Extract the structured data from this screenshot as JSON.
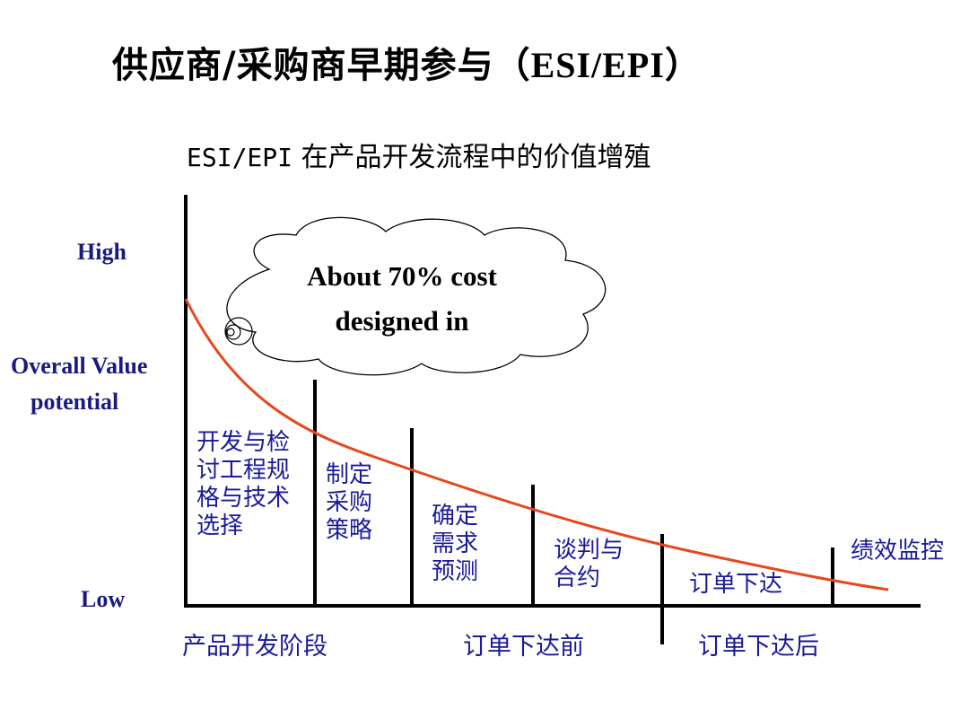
{
  "title_cn": "供应商/采购商早期参与（",
  "title_en": "ESI/EPI",
  "title_end": "）",
  "subtitle_en": "ESI/EPI",
  "subtitle_cn": " 在产品开发流程中的价值增殖",
  "y_axis": {
    "high": "High",
    "label_line1": "Overall Value",
    "label_line2": "potential",
    "low": "Low"
  },
  "callout": {
    "line1": "About 70% cost",
    "line2": "designed in"
  },
  "stages": [
    "开发与检\n讨工程规\n格与技术\n选择",
    "制定\n采购\n策略",
    "确定\n需求\n预测",
    "谈判与\n合约",
    "订单下达",
    "绩效监控"
  ],
  "phases": [
    "产品开发阶段",
    "订单下达前",
    "订单下达后"
  ],
  "colors": {
    "curve": "#e8471e",
    "label_blue": "#1a1a9a",
    "ylabel_navy": "#1a1a80"
  }
}
